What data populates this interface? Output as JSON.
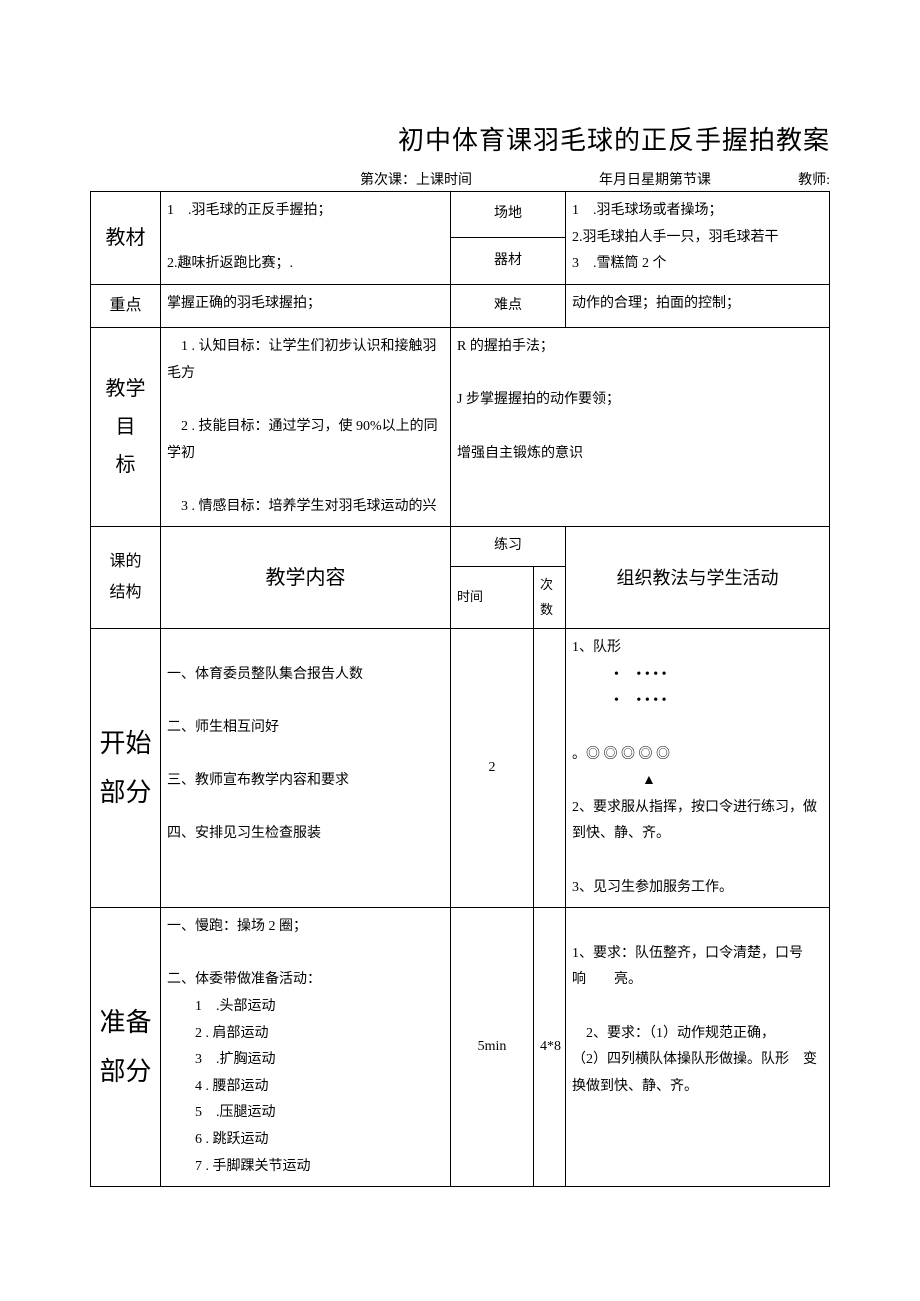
{
  "title": "初中体育课羽毛球的正反手握拍教案",
  "meta": {
    "left": "第次课：上课时间",
    "mid": "年月日星期第节课",
    "right": "教师:"
  },
  "labels": {
    "material": "教材",
    "venue": "场地",
    "equip": "器材",
    "key": "重点",
    "difficulty": "难点",
    "goal": "教学目\n标",
    "structure": "课的\n结构",
    "content_header": "教学内容",
    "practice": "练习",
    "time": "时间",
    "count": "次数",
    "org_header": "组织教法与学生活动",
    "start": "开始部分",
    "prep": "准备部分"
  },
  "material_left": "1 .羽毛球的正反手握拍；\n\n2.趣味折返跑比赛；.",
  "venue_right": "1 .羽毛球场或者操场；\n2.羽毛球拍人手一只，羽毛球若干\n3 .雪糕筒 2 个",
  "key_text": "掌握正确的羽毛球握拍；",
  "difficulty_text": "动作的合理；拍面的控制；",
  "goal_left": " 1 . 认知目标：让学生们初步认识和接触羽毛方\n\n 2 . 技能目标：通过学习，使 90%以上的同学初\n\n 3 . 情感目标：培养学生对羽毛球运动的兴",
  "goal_right": "R 的握拍手法；\n\nJ 步掌握握拍的动作要领；\n\n增强自主锻炼的意识",
  "start_content": "\n一、体育委员整队集合报告人数\n\n二、师生相互问好\n\n三、教师宣布教学内容和要求\n\n四、安排见习生检查服装\n",
  "start_time": "2",
  "start_count": "",
  "start_org": "1、队形\n   •  • • • •\n   •  • • • •\n\n。◎ ◎ ◎ ◎ ◎\n     ▲\n2、要求服从指挥，按口令进行练习，做到快、静、齐。\n\n3、见习生参加服务工作。\n",
  "prep_content": "一、慢跑：操场 2 圈；\n\n二、体委带做准备活动：\n  1 .头部运动\n  2 . 肩部运动\n  3 .扩胸运动\n  4 . 腰部运动\n  5 .压腿运动\n  6 . 跳跃运动\n  7 . 手脚踝关节运动",
  "prep_time": "5min",
  "prep_count": "4*8",
  "prep_org": "\n1、要求：队伍整齐，口令清楚，口号响  亮。\n\n 2、要求：（1）动作规范正确，\n（2）四列横队体操队形做操。队形 变换做到快、静、齐。\n"
}
